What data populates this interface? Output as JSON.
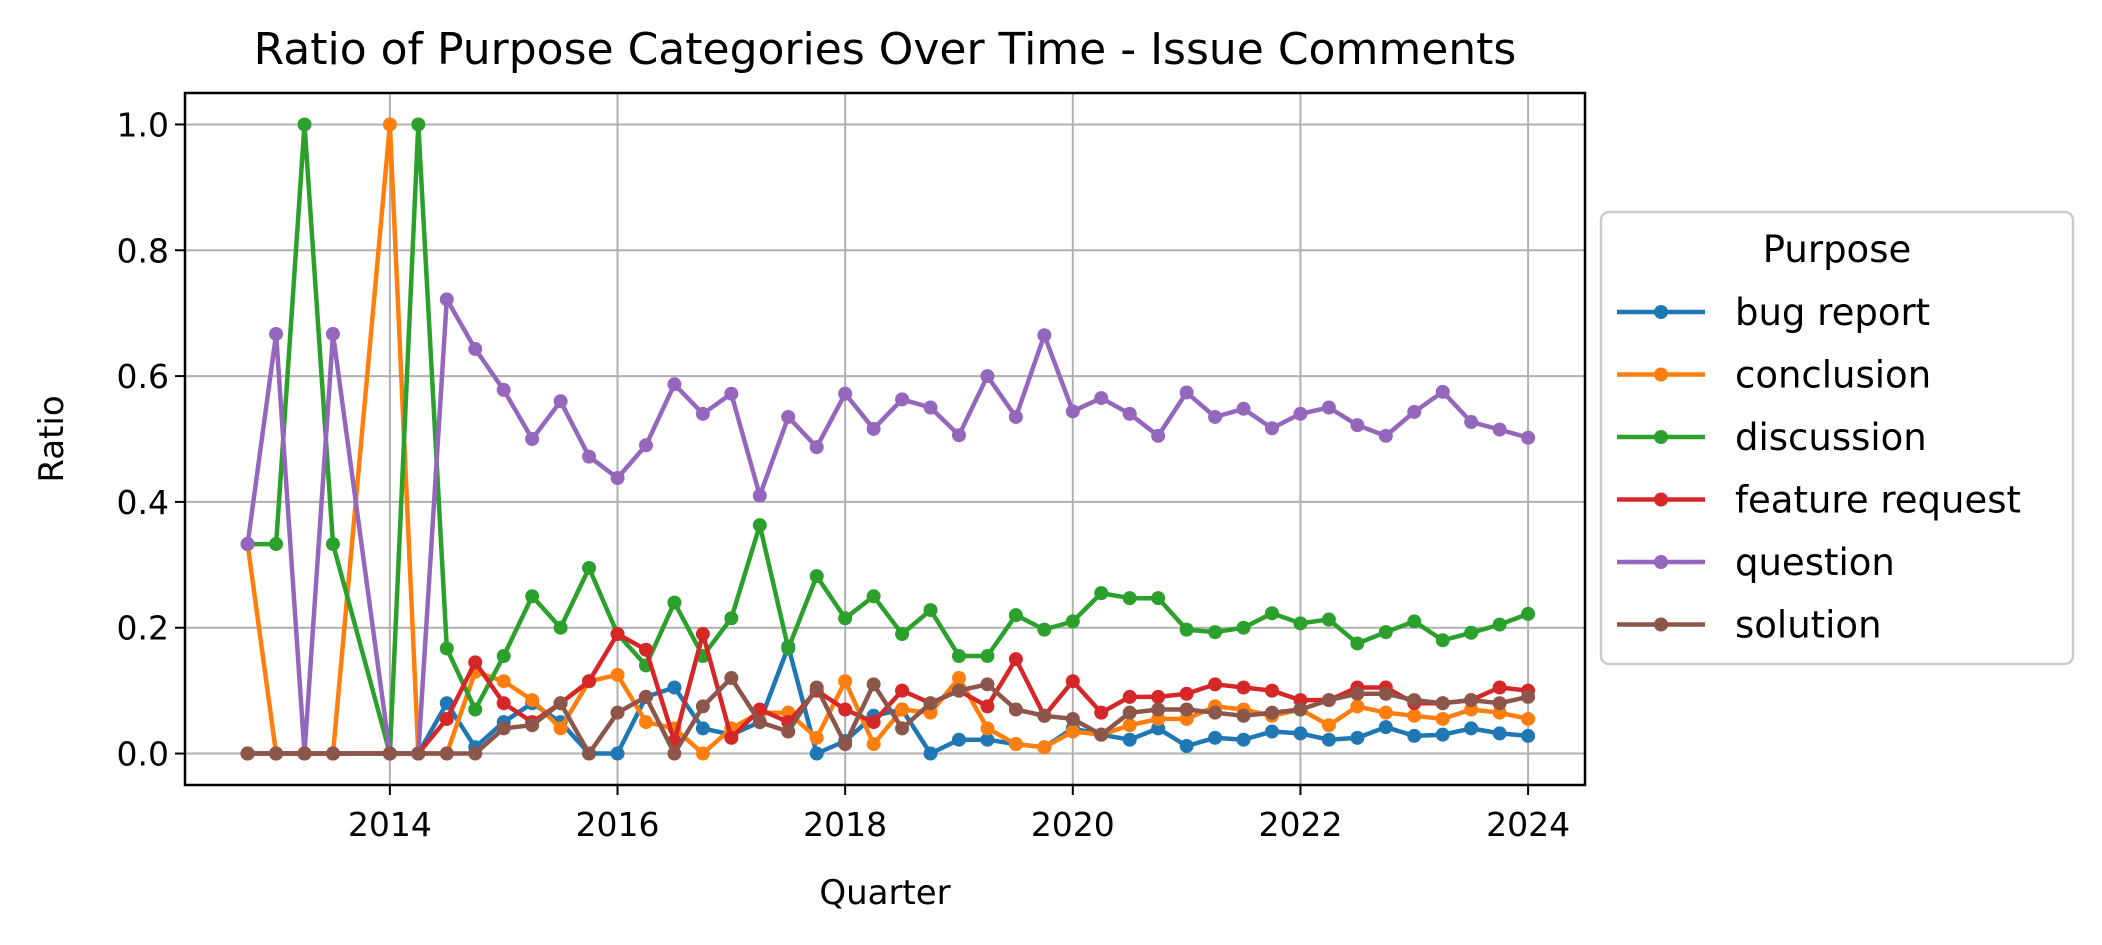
{
  "chart_data": {
    "type": "line",
    "title": "Ratio of Purpose Categories Over Time - Issue Comments",
    "xlabel": "Quarter",
    "ylabel": "Ratio",
    "xlim": [
      2012.2,
      2024.5
    ],
    "ylim": [
      -0.05,
      1.05
    ],
    "xticks": [
      2014,
      2016,
      2018,
      2020,
      2022,
      2024
    ],
    "xtick_labels": [
      "2014",
      "2016",
      "2018",
      "2020",
      "2022",
      "2024"
    ],
    "yticks": [
      0.0,
      0.2,
      0.4,
      0.6,
      0.8,
      1.0
    ],
    "ytick_labels": [
      "0.0",
      "0.2",
      "0.4",
      "0.6",
      "0.8",
      "1.0"
    ],
    "grid": true,
    "legend": {
      "title": "Purpose",
      "placement": "outside right"
    },
    "x": [
      2012.75,
      2013.0,
      2013.25,
      2013.5,
      2014.0,
      2014.25,
      2014.5,
      2014.75,
      2015.0,
      2015.25,
      2015.5,
      2015.75,
      2016.0,
      2016.25,
      2016.5,
      2016.75,
      2017.0,
      2017.25,
      2017.5,
      2017.75,
      2018.0,
      2018.25,
      2018.5,
      2018.75,
      2019.0,
      2019.25,
      2019.5,
      2019.75,
      2020.0,
      2020.25,
      2020.5,
      2020.75,
      2021.0,
      2021.25,
      2021.5,
      2021.75,
      2022.0,
      2022.25,
      2022.5,
      2022.75,
      2023.0,
      2023.25,
      2023.5,
      2023.75,
      2024.0
    ],
    "series": [
      {
        "name": "bug report",
        "color": "#1f77b4",
        "values": [
          0,
          0,
          0,
          0,
          0,
          0,
          0.08,
          0.01,
          0.05,
          0.08,
          0.05,
          0.0,
          0.0,
          0.09,
          0.105,
          0.04,
          0.03,
          0.05,
          0.17,
          0.0,
          0.02,
          0.06,
          0.07,
          0.0,
          0.022,
          0.022,
          0.015,
          0.01,
          0.04,
          0.03,
          0.022,
          0.04,
          0.012,
          0.025,
          0.022,
          0.035,
          0.032,
          0.022,
          0.025,
          0.042,
          0.028,
          0.03,
          0.04,
          0.032,
          0.028
        ]
      },
      {
        "name": "conclusion",
        "color": "#ff7f0e",
        "values": [
          0.333,
          0,
          0,
          0,
          1.0,
          0,
          0,
          0.13,
          0.115,
          0.085,
          0.04,
          0.115,
          0.125,
          0.05,
          0.04,
          0.0,
          0.04,
          0.065,
          0.065,
          0.025,
          0.115,
          0.015,
          0.07,
          0.065,
          0.12,
          0.04,
          0.015,
          0.01,
          0.035,
          0.03,
          0.045,
          0.055,
          0.055,
          0.075,
          0.07,
          0.06,
          0.07,
          0.045,
          0.075,
          0.065,
          0.06,
          0.055,
          0.07,
          0.065,
          0.055
        ]
      },
      {
        "name": "discussion",
        "color": "#2ca02c",
        "values": [
          0.333,
          0.333,
          1.0,
          0.333,
          0,
          1.0,
          0.167,
          0.07,
          0.155,
          0.25,
          0.2,
          0.295,
          0.19,
          0.14,
          0.24,
          0.155,
          0.215,
          0.363,
          0.167,
          0.282,
          0.215,
          0.25,
          0.19,
          0.228,
          0.155,
          0.155,
          0.22,
          0.197,
          0.21,
          0.255,
          0.247,
          0.247,
          0.197,
          0.193,
          0.2,
          0.223,
          0.207,
          0.213,
          0.175,
          0.193,
          0.21,
          0.18,
          0.192,
          0.205,
          0.222
        ]
      },
      {
        "name": "feature request",
        "color": "#d62728",
        "values": [
          0,
          0,
          0,
          0,
          0,
          0,
          0.055,
          0.145,
          0.08,
          0.05,
          0.08,
          0.115,
          0.19,
          0.165,
          0.02,
          0.19,
          0.025,
          0.07,
          0.05,
          0.1,
          0.07,
          0.05,
          0.1,
          0.08,
          0.1,
          0.075,
          0.15,
          0.06,
          0.115,
          0.065,
          0.09,
          0.09,
          0.095,
          0.11,
          0.105,
          0.1,
          0.085,
          0.085,
          0.105,
          0.105,
          0.08,
          0.08,
          0.085,
          0.105,
          0.1
        ]
      },
      {
        "name": "question",
        "color": "#9467bd",
        "values": [
          0.333,
          0.667,
          0,
          0.667,
          0,
          0,
          0.722,
          0.643,
          0.578,
          0.5,
          0.56,
          0.472,
          0.438,
          0.49,
          0.587,
          0.54,
          0.572,
          0.41,
          0.535,
          0.487,
          0.572,
          0.516,
          0.563,
          0.55,
          0.506,
          0.6,
          0.535,
          0.665,
          0.544,
          0.565,
          0.54,
          0.505,
          0.574,
          0.535,
          0.548,
          0.517,
          0.54,
          0.55,
          0.522,
          0.505,
          0.543,
          0.575,
          0.527,
          0.515,
          0.502
        ]
      },
      {
        "name": "solution",
        "color": "#8c564b",
        "values": [
          0,
          0,
          0,
          0,
          0,
          0,
          0,
          0,
          0.04,
          0.045,
          0.08,
          0.0,
          0.065,
          0.09,
          0.0,
          0.075,
          0.12,
          0.05,
          0.035,
          0.105,
          0.015,
          0.11,
          0.04,
          0.08,
          0.1,
          0.11,
          0.07,
          0.06,
          0.055,
          0.03,
          0.065,
          0.07,
          0.07,
          0.065,
          0.06,
          0.065,
          0.07,
          0.085,
          0.095,
          0.095,
          0.085,
          0.08,
          0.085,
          0.08,
          0.09
        ]
      }
    ]
  }
}
